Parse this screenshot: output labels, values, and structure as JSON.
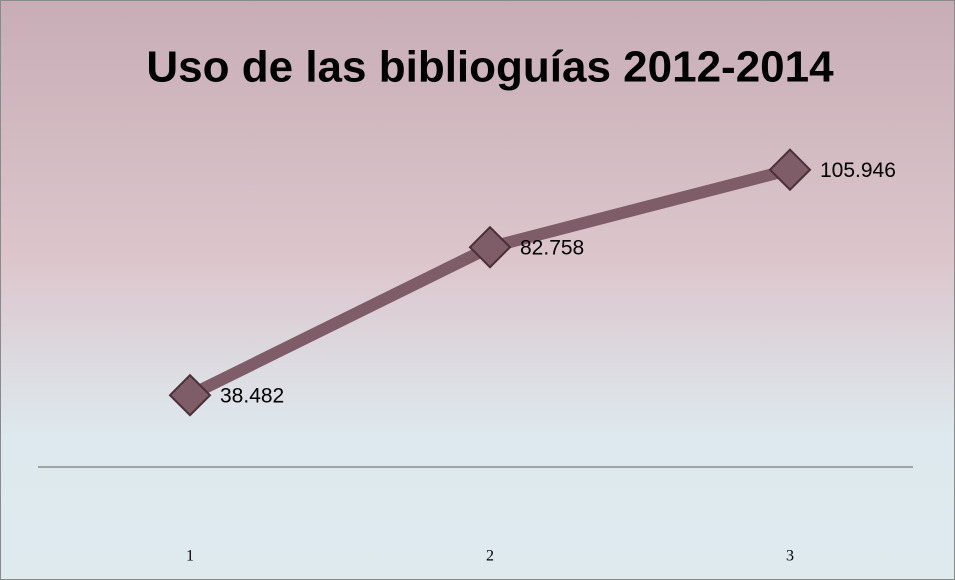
{
  "chart_data": {
    "type": "line",
    "title": "Uso de las biblioguías 2012-2014",
    "categories": [
      "1",
      "2",
      "3"
    ],
    "values": [
      38482,
      82758,
      105946
    ],
    "value_labels": [
      "38.482",
      "82.758",
      "105.946"
    ],
    "color": "#7e5c68",
    "marker_edge_color": "#4b3039",
    "ylim": [
      17000,
      125000
    ]
  }
}
